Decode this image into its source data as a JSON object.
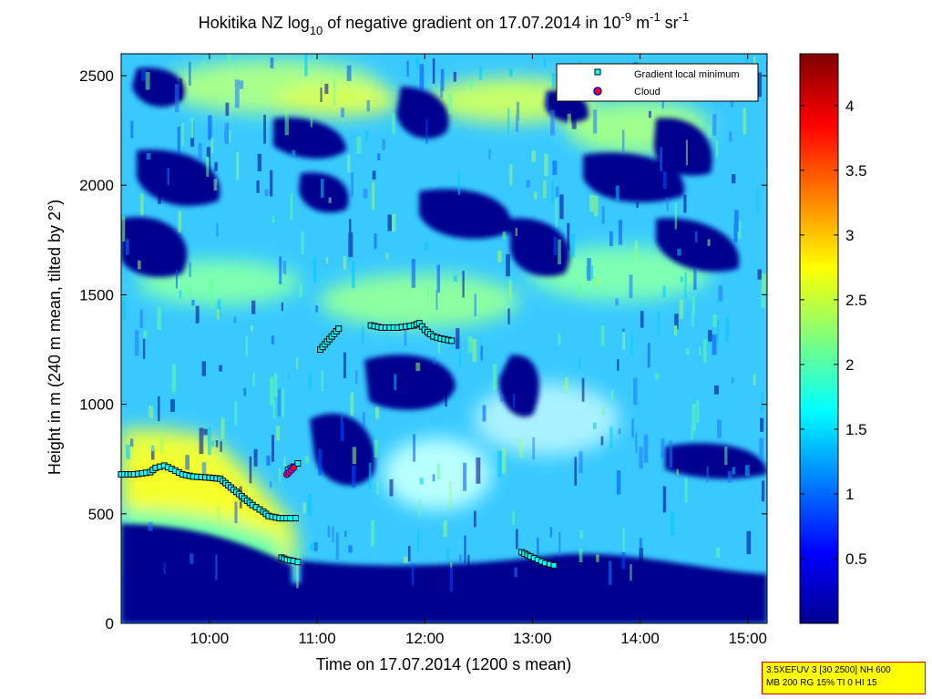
{
  "chart_data": {
    "type": "heatmap",
    "title": {
      "prefix": "Hokitika NZ log",
      "prefix_sub": "10",
      "middle": " of negative gradient on 17.07.2014 in 10",
      "exp1": "-9",
      "unit_m": " m",
      "exp2": "-1",
      "unit_sr": " sr",
      "exp3": "-1"
    },
    "xlabel": "Time on 17.07.2014 (1200 s mean)",
    "ylabel": "Height in m (240 m mean, tilted by 2°)",
    "xlim": [
      9.18,
      15.18
    ],
    "ylim": [
      0,
      2600
    ],
    "x_ticks": [
      {
        "value": 10,
        "label": "10:00"
      },
      {
        "value": 11,
        "label": "11:00"
      },
      {
        "value": 12,
        "label": "12:00"
      },
      {
        "value": 13,
        "label": "13:00"
      },
      {
        "value": 14,
        "label": "14:00"
      },
      {
        "value": 15,
        "label": "15:00"
      }
    ],
    "y_ticks": [
      {
        "value": 0,
        "label": "0"
      },
      {
        "value": 500,
        "label": "500"
      },
      {
        "value": 1000,
        "label": "1000"
      },
      {
        "value": 1500,
        "label": "1500"
      },
      {
        "value": 2000,
        "label": "2000"
      },
      {
        "value": 2500,
        "label": "2500"
      }
    ],
    "colorbar": {
      "range": [
        0,
        4.4
      ],
      "colormap": "jet",
      "ticks": [
        {
          "value": 0.5,
          "label": "0.5"
        },
        {
          "value": 1,
          "label": "1"
        },
        {
          "value": 1.5,
          "label": "1.5"
        },
        {
          "value": 2,
          "label": "2"
        },
        {
          "value": 2.5,
          "label": "2.5"
        },
        {
          "value": 3,
          "label": "3"
        },
        {
          "value": 3.5,
          "label": "3.5"
        },
        {
          "value": 4,
          "label": "4"
        }
      ]
    },
    "legend": {
      "placement": "top-right",
      "entries": [
        {
          "label": "Gradient local minimum",
          "marker": "square",
          "color": "#00ffff"
        },
        {
          "label": "Cloud",
          "marker": "circle",
          "color": "#ff0000"
        }
      ]
    },
    "field_bands": [
      {
        "x_from": 9.18,
        "x_to": 10.1,
        "y_from": 350,
        "y_to": 1000,
        "value": 2.2
      },
      {
        "x_from": 10.1,
        "x_to": 10.9,
        "y_from": 250,
        "y_to": 800,
        "value": 2.0
      },
      {
        "x_from": 11.3,
        "x_to": 12.7,
        "y_from": 1250,
        "y_to": 1500,
        "value": 2.0
      },
      {
        "x_from": 10.5,
        "x_to": 12.5,
        "y_from": 2300,
        "y_to": 2450,
        "value": 2.3
      },
      {
        "x_from": 9.18,
        "x_to": 15.18,
        "y_from": 0,
        "y_to": 200,
        "value": 0.1
      }
    ],
    "gradient_minima": [
      {
        "name": "layer-1",
        "points": [
          [
            9.18,
            680
          ],
          [
            9.3,
            680
          ],
          [
            9.45,
            690
          ],
          [
            9.5,
            710
          ],
          [
            9.58,
            720
          ],
          [
            9.65,
            705
          ],
          [
            9.75,
            680
          ],
          [
            9.85,
            670
          ],
          [
            10.0,
            665
          ],
          [
            10.1,
            660
          ],
          [
            10.2,
            620
          ],
          [
            10.3,
            580
          ],
          [
            10.4,
            540
          ],
          [
            10.5,
            510
          ],
          [
            10.55,
            490
          ],
          [
            10.65,
            480
          ],
          [
            10.75,
            480
          ],
          [
            10.8,
            480
          ]
        ]
      },
      {
        "name": "layer-2",
        "points": [
          [
            10.67,
            300
          ],
          [
            10.72,
            290
          ],
          [
            10.78,
            285
          ],
          [
            10.82,
            280
          ]
        ]
      },
      {
        "name": "layer-3",
        "points": [
          [
            10.73,
            700
          ],
          [
            10.78,
            715
          ],
          [
            10.82,
            730
          ]
        ]
      },
      {
        "name": "layer-4",
        "points": [
          [
            11.03,
            1250
          ],
          [
            11.2,
            1345
          ]
        ]
      },
      {
        "name": "layer-5",
        "points": [
          [
            11.5,
            1360
          ],
          [
            11.6,
            1350
          ],
          [
            11.75,
            1350
          ],
          [
            11.9,
            1360
          ],
          [
            11.95,
            1370
          ],
          [
            12.0,
            1340
          ],
          [
            12.08,
            1310
          ],
          [
            12.15,
            1300
          ],
          [
            12.25,
            1290
          ]
        ]
      },
      {
        "name": "layer-6",
        "points": [
          [
            12.9,
            325
          ],
          [
            12.98,
            305
          ],
          [
            13.05,
            290
          ],
          [
            13.12,
            275
          ],
          [
            13.2,
            265
          ]
        ]
      }
    ],
    "cloud": [
      [
        10.72,
        680
      ],
      [
        10.74,
        690
      ],
      [
        10.76,
        700
      ],
      [
        10.78,
        710
      ]
    ]
  },
  "info_box": {
    "line1": "3.5XEFUV 3 [30 2500] NH 600",
    "line2": "MB 200 RG 15% TI 0 HI 15"
  }
}
